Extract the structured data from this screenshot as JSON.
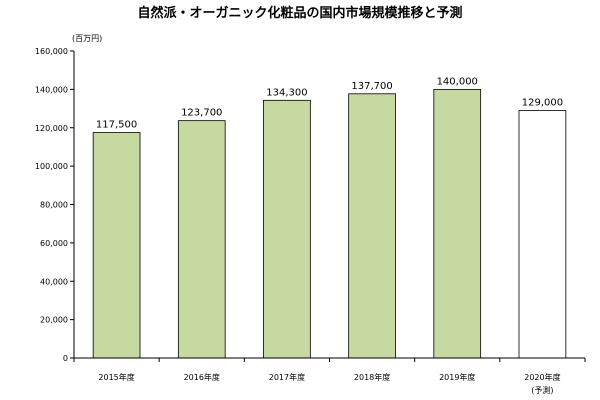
{
  "chart_data": {
    "type": "bar",
    "title": "自然派・オーガニック化粧品の国内市場規模推移と予測",
    "unit_label": "(百万円)",
    "categories": [
      "2015年度",
      "2016年度",
      "2017年度",
      "2018年度",
      "2019年度",
      "2020年度"
    ],
    "category_notes": [
      "",
      "",
      "",
      "",
      "",
      "(予測)"
    ],
    "values": [
      117500,
      123700,
      134300,
      137700,
      140000,
      129000
    ],
    "value_labels": [
      "117,500",
      "123,700",
      "134,300",
      "137,700",
      "140,000",
      "129,000"
    ],
    "ylim": [
      0,
      160000
    ],
    "yticks": [
      0,
      20000,
      40000,
      60000,
      80000,
      100000,
      120000,
      140000,
      160000
    ],
    "ytick_labels": [
      "0",
      "20,000",
      "40,000",
      "60,000",
      "80,000",
      "100,000",
      "120,000",
      "140,000",
      "160,000"
    ],
    "grid": false,
    "legend": "none",
    "colors": {
      "actual_fill": "#c5d9a0",
      "actual_stroke": "#000000",
      "forecast_fill": "#ffffff",
      "forecast_stroke": "#000000",
      "axis": "#000000"
    },
    "forecast_index": 5
  }
}
